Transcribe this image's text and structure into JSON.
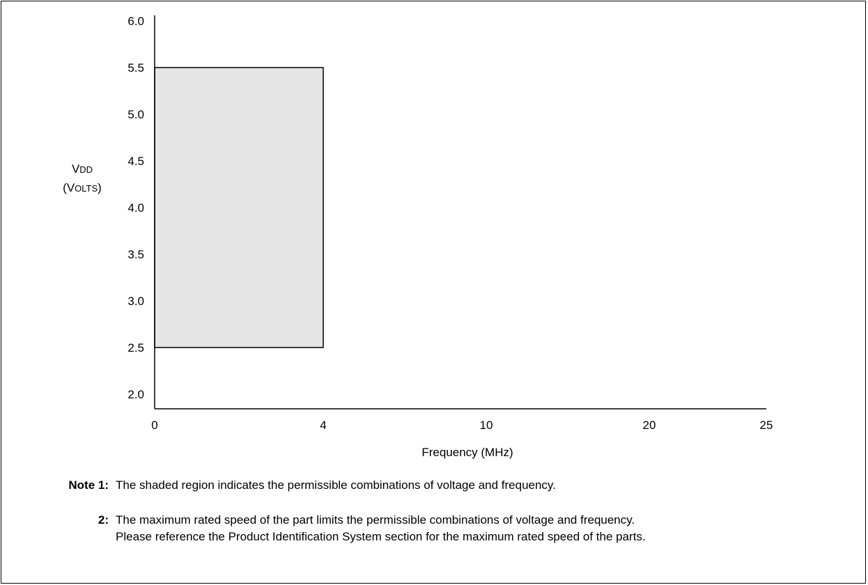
{
  "chart_data": {
    "type": "area",
    "y_tick_labels": [
      "2.0",
      "2.5",
      "3.0",
      "3.5",
      "4.0",
      "4.5",
      "5.0",
      "5.5",
      "6.0"
    ],
    "x_tick_labels": [
      "0",
      "4",
      "10",
      "20",
      "25"
    ],
    "ylabel_line1_prefix": "V",
    "ylabel_line1_small": "DD",
    "ylabel_line2_prefix": "(V",
    "ylabel_line2_small": "OLTS",
    "ylabel_line2_suffix": ")",
    "xlabel": "Frequency (MHz)",
    "ylim": [
      2.0,
      6.0
    ],
    "x_axis": "non-linear; ticks at 0, 4, 10, 20, 25",
    "shaded_region": {
      "x_min": 0,
      "x_max": 4,
      "y_min": 2.5,
      "y_max": 5.5,
      "fill": "#e5e5e5"
    },
    "grid": false,
    "legend": "none"
  },
  "notes": [
    {
      "label": "Note 1:",
      "lines": [
        "The shaded region indicates the permissible combinations of voltage and frequency."
      ]
    },
    {
      "label": "2:",
      "lines": [
        "The maximum rated speed of the part limits the permissible combinations of voltage and frequency.",
        "Please reference the Product Identification System section for the maximum rated speed of the parts."
      ]
    }
  ]
}
